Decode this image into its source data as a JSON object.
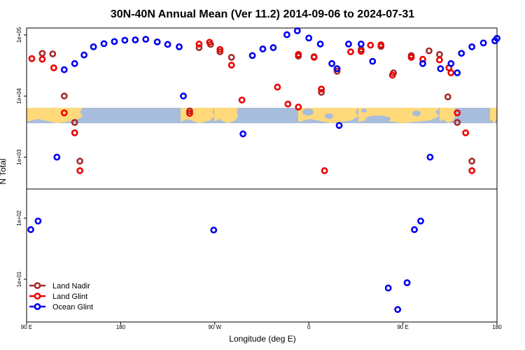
{
  "chart_data": {
    "type": "scatter",
    "title": "30N-40N Annual Mean (Ver 11.2)   2014-09-06 to 2024-07-31",
    "xlabel": "Longitude (deg E)",
    "ylabel": "N Total",
    "x_ticks": [
      {
        "value": 90,
        "label": "90 E"
      },
      {
        "value": 180,
        "label": "180"
      },
      {
        "value": 270,
        "label": "90 W"
      },
      {
        "value": 360,
        "label": "0"
      },
      {
        "value": 450,
        "label": "90 E"
      },
      {
        "value": 540,
        "label": "180"
      }
    ],
    "xlim": [
      90,
      540
    ],
    "y_scale": "log",
    "y_ticks": [
      {
        "value": 10,
        "label": "1e+01"
      },
      {
        "value": 100,
        "label": "1e+02"
      },
      {
        "value": 1000,
        "label": "1e+03"
      },
      {
        "value": 10000,
        "label": "1e+04"
      },
      {
        "value": 100000,
        "label": "1e+05"
      }
    ],
    "ylim": [
      2,
      130000
    ],
    "map_strip": {
      "land_color": "#ffd97a",
      "ocean_color": "#a8bddb"
    },
    "legend": {
      "position": "bottom-left"
    },
    "series": [
      {
        "name": "Land Nadir",
        "color": "#a52a2a",
        "points": [
          [
            105,
            50000
          ],
          [
            115,
            49000
          ],
          [
            126,
            10000
          ],
          [
            136,
            3700
          ],
          [
            141,
            860
          ],
          [
            246,
            5700
          ],
          [
            255,
            62000
          ],
          [
            266,
            70000
          ],
          [
            275,
            53000
          ],
          [
            286,
            43000
          ],
          [
            350,
            45000
          ],
          [
            365,
            44000
          ],
          [
            372,
            11500
          ],
          [
            387,
            25500
          ],
          [
            410,
            58000
          ],
          [
            429,
            65000
          ],
          [
            441,
            24000
          ],
          [
            458,
            46000
          ],
          [
            475,
            55000
          ],
          [
            485,
            48000
          ],
          [
            493,
            9700
          ],
          [
            502,
            3700
          ],
          [
            516,
            860
          ]
        ]
      },
      {
        "name": "Land Glint",
        "color": "#ee0000",
        "points": [
          [
            95,
            41000
          ],
          [
            105,
            40000
          ],
          [
            116,
            29000
          ],
          [
            126,
            5300
          ],
          [
            136,
            2500
          ],
          [
            141,
            600
          ],
          [
            246,
            5200
          ],
          [
            255,
            71000
          ],
          [
            265,
            76000
          ],
          [
            275,
            58000
          ],
          [
            286,
            32000
          ],
          [
            296,
            8600
          ],
          [
            330,
            14000
          ],
          [
            350,
            48000
          ],
          [
            365,
            43000
          ],
          [
            372,
            13000
          ],
          [
            387,
            28000
          ],
          [
            400,
            53000
          ],
          [
            410,
            54000
          ],
          [
            419,
            68000
          ],
          [
            429,
            69000
          ],
          [
            440,
            22000
          ],
          [
            458,
            43000
          ],
          [
            469,
            40000
          ],
          [
            485,
            39000
          ],
          [
            494,
            29000
          ],
          [
            502,
            5300
          ],
          [
            510,
            2500
          ],
          [
            516,
            600
          ],
          [
            496,
            24000
          ],
          [
            340,
            7400
          ],
          [
            350,
            6600
          ],
          [
            375,
            600
          ]
        ]
      },
      {
        "name": "Ocean Glint",
        "color": "#0000ee",
        "points": [
          [
            94,
            65
          ],
          [
            101,
            90
          ],
          [
            119,
            1000
          ],
          [
            126,
            27000
          ],
          [
            136,
            34000
          ],
          [
            145,
            47000
          ],
          [
            154,
            64000
          ],
          [
            164,
            72000
          ],
          [
            174,
            78000
          ],
          [
            184,
            82000
          ],
          [
            194,
            83000
          ],
          [
            204,
            85000
          ],
          [
            215,
            77000
          ],
          [
            225,
            70000
          ],
          [
            236,
            64000
          ],
          [
            240,
            10000
          ],
          [
            269,
            64
          ],
          [
            297,
            2400
          ],
          [
            306,
            46000
          ],
          [
            316,
            59000
          ],
          [
            326,
            62000
          ],
          [
            339,
            101000
          ],
          [
            349,
            117000
          ],
          [
            360,
            89000
          ],
          [
            371,
            71000
          ],
          [
            382,
            34000
          ],
          [
            387,
            28000
          ],
          [
            398,
            71000
          ],
          [
            410,
            71000
          ],
          [
            421,
            37000
          ],
          [
            436,
            7.2
          ],
          [
            445,
            3.2
          ],
          [
            454,
            8.8
          ],
          [
            461,
            65
          ],
          [
            467,
            90
          ],
          [
            476,
            1000
          ],
          [
            486,
            28000
          ],
          [
            496,
            34000
          ],
          [
            506,
            50000
          ],
          [
            516,
            64000
          ],
          [
            527,
            74000
          ],
          [
            538,
            80000
          ],
          [
            540,
            88000
          ],
          [
            389,
            3300
          ],
          [
            469,
            34000
          ],
          [
            502,
            24000
          ]
        ]
      }
    ]
  }
}
